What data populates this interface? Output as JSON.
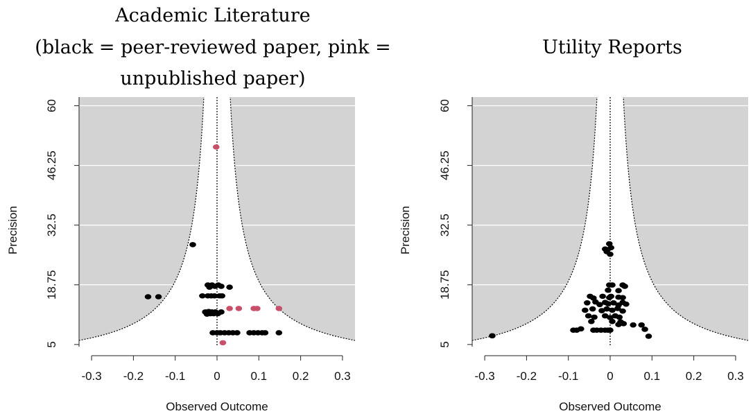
{
  "colors": {
    "background": "#ffffff",
    "panel_fill": "#d3d3d3",
    "funnel_fill": "#ffffff",
    "peer_reviewed": "#000000",
    "unpublished": "#c8506a",
    "grid": "#ffffff"
  },
  "chart_data": [
    {
      "type": "scatter",
      "subtype": "funnel-plot",
      "title_lines": [
        "Academic Literature",
        "(black = peer-reviewed paper, pink =",
        "unpublished paper)"
      ],
      "xlabel": "Observed Outcome",
      "ylabel": "Precision",
      "xlim": [
        -0.33,
        0.33
      ],
      "ylim": [
        4.5,
        62
      ],
      "xticks": [
        -0.3,
        -0.2,
        -0.1,
        0,
        0.1,
        0.2,
        0.3
      ],
      "xtick_labels": [
        "-0.3",
        "-0.2",
        "-0.1",
        "0",
        "0.1",
        "0.2",
        "0.3"
      ],
      "yticks": [
        5,
        18.75,
        32.5,
        46.25,
        60
      ],
      "ytick_labels": [
        "5",
        "18.75",
        "32.5",
        "46.25",
        "60"
      ],
      "grid": "horizontal",
      "funnel_center": 0,
      "funnel_multiplier": 1.96,
      "series": [
        {
          "color_key": "peer_reviewed",
          "points": [
            {
              "x": -0.165,
              "y": 16.0
            },
            {
              "x": -0.14,
              "y": 16.0
            },
            {
              "x": -0.058,
              "y": 28.0
            },
            {
              "x": -0.022,
              "y": 18.7
            },
            {
              "x": -0.018,
              "y": 18.2
            },
            {
              "x": -0.012,
              "y": 18.7
            },
            {
              "x": -0.005,
              "y": 18.4
            },
            {
              "x": 0.003,
              "y": 18.7
            },
            {
              "x": 0.01,
              "y": 18.4
            },
            {
              "x": 0.03,
              "y": 18.2
            },
            {
              "x": -0.035,
              "y": 16.2
            },
            {
              "x": -0.022,
              "y": 16.2
            },
            {
              "x": -0.014,
              "y": 16.2
            },
            {
              "x": -0.006,
              "y": 16.2
            },
            {
              "x": 0.006,
              "y": 16.2
            },
            {
              "x": 0.012,
              "y": 16.2
            },
            {
              "x": -0.028,
              "y": 12.5
            },
            {
              "x": -0.024,
              "y": 12.0
            },
            {
              "x": -0.02,
              "y": 12.6
            },
            {
              "x": -0.016,
              "y": 12.1
            },
            {
              "x": -0.012,
              "y": 12.5
            },
            {
              "x": -0.008,
              "y": 12.1
            },
            {
              "x": -0.004,
              "y": 12.5
            },
            {
              "x": 0.002,
              "y": 12.1
            },
            {
              "x": 0.01,
              "y": 12.5
            },
            {
              "x": -0.01,
              "y": 7.7
            },
            {
              "x": 0.0,
              "y": 7.7
            },
            {
              "x": 0.008,
              "y": 7.7
            },
            {
              "x": 0.018,
              "y": 7.7
            },
            {
              "x": 0.028,
              "y": 7.7
            },
            {
              "x": 0.038,
              "y": 7.7
            },
            {
              "x": 0.048,
              "y": 7.7
            },
            {
              "x": 0.078,
              "y": 7.7
            },
            {
              "x": 0.088,
              "y": 7.7
            },
            {
              "x": 0.098,
              "y": 7.7
            },
            {
              "x": 0.108,
              "y": 7.7
            },
            {
              "x": 0.115,
              "y": 7.7
            },
            {
              "x": 0.148,
              "y": 7.7
            }
          ]
        },
        {
          "color_key": "unpublished",
          "points": [
            {
              "x": -0.002,
              "y": 50.5
            },
            {
              "x": 0.03,
              "y": 13.3
            },
            {
              "x": 0.052,
              "y": 13.3
            },
            {
              "x": 0.088,
              "y": 13.3
            },
            {
              "x": 0.096,
              "y": 13.3
            },
            {
              "x": 0.148,
              "y": 13.3
            },
            {
              "x": 0.014,
              "y": 5.4
            }
          ]
        }
      ]
    },
    {
      "type": "scatter",
      "subtype": "funnel-plot",
      "title_lines": [
        "Utility Reports"
      ],
      "xlabel": "Observed Outcome",
      "ylabel": "Precision",
      "xlim": [
        -0.33,
        0.33
      ],
      "ylim": [
        4.5,
        62
      ],
      "xticks": [
        -0.3,
        -0.2,
        -0.1,
        0,
        0.1,
        0.2,
        0.3
      ],
      "xtick_labels": [
        "-0.3",
        "-0.2",
        "-0.1",
        "0",
        "0.1",
        "0.2",
        "0.3"
      ],
      "yticks": [
        5,
        18.75,
        32.5,
        46.25,
        60
      ],
      "ytick_labels": [
        "5",
        "18.75",
        "32.5",
        "46.25",
        "60"
      ],
      "grid": "horizontal",
      "funnel_center": 0,
      "funnel_multiplier": 1.96,
      "series": [
        {
          "color_key": "peer_reviewed",
          "points": [
            {
              "x": -0.282,
              "y": 7.0
            },
            {
              "x": -0.002,
              "y": 28.2
            },
            {
              "x": -0.008,
              "y": 26.4
            },
            {
              "x": 0.002,
              "y": 27.3
            },
            {
              "x": -0.012,
              "y": 27.0
            },
            {
              "x": 0.0,
              "y": 25.8
            },
            {
              "x": -0.002,
              "y": 18.7
            },
            {
              "x": 0.005,
              "y": 18.7
            },
            {
              "x": 0.03,
              "y": 18.7
            },
            {
              "x": 0.035,
              "y": 18.4
            },
            {
              "x": -0.005,
              "y": 17.5
            },
            {
              "x": 0.02,
              "y": 17.4
            },
            {
              "x": -0.048,
              "y": 16.1
            },
            {
              "x": -0.04,
              "y": 15.7
            },
            {
              "x": -0.018,
              "y": 16.1
            },
            {
              "x": -0.002,
              "y": 15.8
            },
            {
              "x": 0.002,
              "y": 16.1
            },
            {
              "x": 0.02,
              "y": 15.9
            },
            {
              "x": 0.03,
              "y": 15.8
            },
            {
              "x": -0.055,
              "y": 14.6
            },
            {
              "x": -0.035,
              "y": 14.8
            },
            {
              "x": -0.025,
              "y": 14.2
            },
            {
              "x": -0.012,
              "y": 14.7
            },
            {
              "x": -0.005,
              "y": 14.4
            },
            {
              "x": 0.008,
              "y": 14.6
            },
            {
              "x": 0.02,
              "y": 14.1
            },
            {
              "x": 0.03,
              "y": 14.7
            },
            {
              "x": 0.038,
              "y": 14.3
            },
            {
              "x": -0.06,
              "y": 12.9
            },
            {
              "x": -0.042,
              "y": 13.2
            },
            {
              "x": -0.02,
              "y": 12.8
            },
            {
              "x": -0.008,
              "y": 13.2
            },
            {
              "x": 0.005,
              "y": 12.9
            },
            {
              "x": 0.018,
              "y": 13.3
            },
            {
              "x": 0.03,
              "y": 12.7
            },
            {
              "x": -0.052,
              "y": 11.6
            },
            {
              "x": -0.038,
              "y": 11.3
            },
            {
              "x": -0.012,
              "y": 11.6
            },
            {
              "x": 0.0,
              "y": 11.2
            },
            {
              "x": 0.012,
              "y": 11.6
            },
            {
              "x": 0.022,
              "y": 11.3
            },
            {
              "x": -0.045,
              "y": 10.3
            },
            {
              "x": 0.005,
              "y": 10.3
            },
            {
              "x": 0.025,
              "y": 10.2
            },
            {
              "x": 0.032,
              "y": 9.8
            },
            {
              "x": 0.055,
              "y": 9.5
            },
            {
              "x": 0.075,
              "y": 9.5
            },
            {
              "x": 0.02,
              "y": 9.6
            },
            {
              "x": -0.088,
              "y": 8.3
            },
            {
              "x": -0.08,
              "y": 8.3
            },
            {
              "x": -0.07,
              "y": 8.6
            },
            {
              "x": -0.04,
              "y": 8.3
            },
            {
              "x": -0.032,
              "y": 8.3
            },
            {
              "x": -0.022,
              "y": 8.3
            },
            {
              "x": -0.012,
              "y": 8.3
            },
            {
              "x": -0.005,
              "y": 8.3
            },
            {
              "x": 0.0,
              "y": 8.3
            },
            {
              "x": 0.083,
              "y": 8.5
            },
            {
              "x": 0.092,
              "y": 6.9
            }
          ]
        }
      ]
    }
  ]
}
